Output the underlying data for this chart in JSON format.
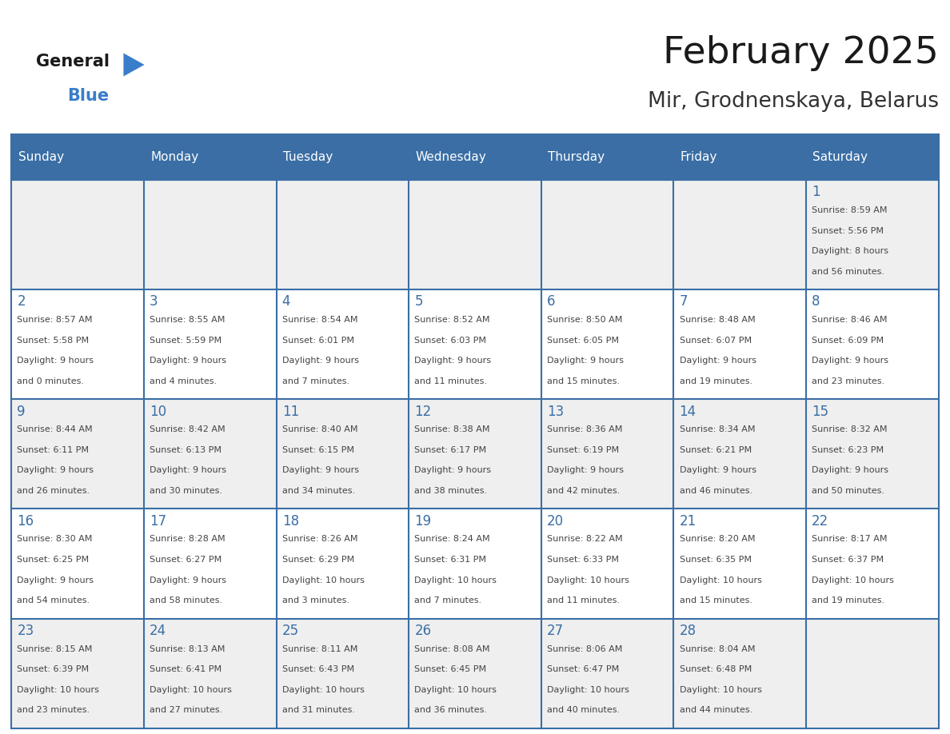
{
  "title": "February 2025",
  "subtitle": "Mir, Grodnenskaya, Belarus",
  "days_of_week": [
    "Sunday",
    "Monday",
    "Tuesday",
    "Wednesday",
    "Thursday",
    "Friday",
    "Saturday"
  ],
  "header_bg": "#3A6EA5",
  "header_text": "#FFFFFF",
  "cell_bg_light": "#EFEFEF",
  "cell_bg_white": "#FFFFFF",
  "grid_line_color": "#3A6EA5",
  "day_number_color": "#3A6EA5",
  "cell_text_color": "#444444",
  "title_color": "#1a1a1a",
  "subtitle_color": "#333333",
  "logo_general_color": "#1a1a1a",
  "logo_blue_color": "#3A7DC9",
  "calendar": [
    [
      {
        "day": null,
        "info": ""
      },
      {
        "day": null,
        "info": ""
      },
      {
        "day": null,
        "info": ""
      },
      {
        "day": null,
        "info": ""
      },
      {
        "day": null,
        "info": ""
      },
      {
        "day": null,
        "info": ""
      },
      {
        "day": 1,
        "info": "Sunrise: 8:59 AM\nSunset: 5:56 PM\nDaylight: 8 hours\nand 56 minutes."
      }
    ],
    [
      {
        "day": 2,
        "info": "Sunrise: 8:57 AM\nSunset: 5:58 PM\nDaylight: 9 hours\nand 0 minutes."
      },
      {
        "day": 3,
        "info": "Sunrise: 8:55 AM\nSunset: 5:59 PM\nDaylight: 9 hours\nand 4 minutes."
      },
      {
        "day": 4,
        "info": "Sunrise: 8:54 AM\nSunset: 6:01 PM\nDaylight: 9 hours\nand 7 minutes."
      },
      {
        "day": 5,
        "info": "Sunrise: 8:52 AM\nSunset: 6:03 PM\nDaylight: 9 hours\nand 11 minutes."
      },
      {
        "day": 6,
        "info": "Sunrise: 8:50 AM\nSunset: 6:05 PM\nDaylight: 9 hours\nand 15 minutes."
      },
      {
        "day": 7,
        "info": "Sunrise: 8:48 AM\nSunset: 6:07 PM\nDaylight: 9 hours\nand 19 minutes."
      },
      {
        "day": 8,
        "info": "Sunrise: 8:46 AM\nSunset: 6:09 PM\nDaylight: 9 hours\nand 23 minutes."
      }
    ],
    [
      {
        "day": 9,
        "info": "Sunrise: 8:44 AM\nSunset: 6:11 PM\nDaylight: 9 hours\nand 26 minutes."
      },
      {
        "day": 10,
        "info": "Sunrise: 8:42 AM\nSunset: 6:13 PM\nDaylight: 9 hours\nand 30 minutes."
      },
      {
        "day": 11,
        "info": "Sunrise: 8:40 AM\nSunset: 6:15 PM\nDaylight: 9 hours\nand 34 minutes."
      },
      {
        "day": 12,
        "info": "Sunrise: 8:38 AM\nSunset: 6:17 PM\nDaylight: 9 hours\nand 38 minutes."
      },
      {
        "day": 13,
        "info": "Sunrise: 8:36 AM\nSunset: 6:19 PM\nDaylight: 9 hours\nand 42 minutes."
      },
      {
        "day": 14,
        "info": "Sunrise: 8:34 AM\nSunset: 6:21 PM\nDaylight: 9 hours\nand 46 minutes."
      },
      {
        "day": 15,
        "info": "Sunrise: 8:32 AM\nSunset: 6:23 PM\nDaylight: 9 hours\nand 50 minutes."
      }
    ],
    [
      {
        "day": 16,
        "info": "Sunrise: 8:30 AM\nSunset: 6:25 PM\nDaylight: 9 hours\nand 54 minutes."
      },
      {
        "day": 17,
        "info": "Sunrise: 8:28 AM\nSunset: 6:27 PM\nDaylight: 9 hours\nand 58 minutes."
      },
      {
        "day": 18,
        "info": "Sunrise: 8:26 AM\nSunset: 6:29 PM\nDaylight: 10 hours\nand 3 minutes."
      },
      {
        "day": 19,
        "info": "Sunrise: 8:24 AM\nSunset: 6:31 PM\nDaylight: 10 hours\nand 7 minutes."
      },
      {
        "day": 20,
        "info": "Sunrise: 8:22 AM\nSunset: 6:33 PM\nDaylight: 10 hours\nand 11 minutes."
      },
      {
        "day": 21,
        "info": "Sunrise: 8:20 AM\nSunset: 6:35 PM\nDaylight: 10 hours\nand 15 minutes."
      },
      {
        "day": 22,
        "info": "Sunrise: 8:17 AM\nSunset: 6:37 PM\nDaylight: 10 hours\nand 19 minutes."
      }
    ],
    [
      {
        "day": 23,
        "info": "Sunrise: 8:15 AM\nSunset: 6:39 PM\nDaylight: 10 hours\nand 23 minutes."
      },
      {
        "day": 24,
        "info": "Sunrise: 8:13 AM\nSunset: 6:41 PM\nDaylight: 10 hours\nand 27 minutes."
      },
      {
        "day": 25,
        "info": "Sunrise: 8:11 AM\nSunset: 6:43 PM\nDaylight: 10 hours\nand 31 minutes."
      },
      {
        "day": 26,
        "info": "Sunrise: 8:08 AM\nSunset: 6:45 PM\nDaylight: 10 hours\nand 36 minutes."
      },
      {
        "day": 27,
        "info": "Sunrise: 8:06 AM\nSunset: 6:47 PM\nDaylight: 10 hours\nand 40 minutes."
      },
      {
        "day": 28,
        "info": "Sunrise: 8:04 AM\nSunset: 6:48 PM\nDaylight: 10 hours\nand 44 minutes."
      },
      {
        "day": null,
        "info": ""
      }
    ]
  ]
}
